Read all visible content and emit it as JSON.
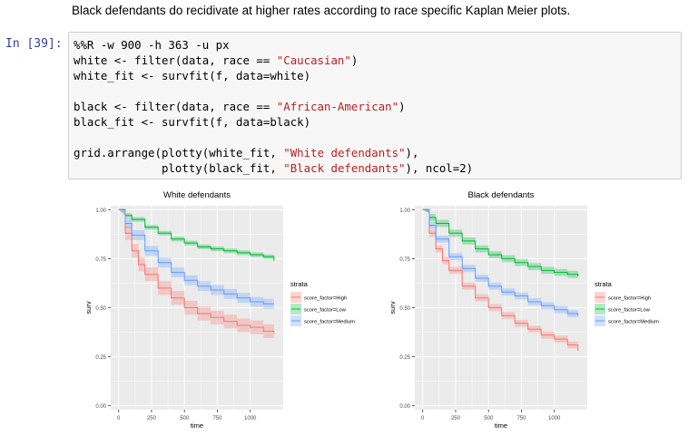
{
  "markdown": {
    "text": "Black defendants do recidivate at higher rates according to race specific Kaplan Meier plots."
  },
  "cell": {
    "prompt": "In [39]:",
    "code_lines": [
      [
        {
          "t": "%%R -w 900 -h 363 -u px",
          "c": ""
        }
      ],
      [
        {
          "t": "white <- filter(data, race == ",
          "c": ""
        },
        {
          "t": "\"Caucasian\"",
          "c": "str"
        },
        {
          "t": ")",
          "c": ""
        }
      ],
      [
        {
          "t": "white_fit <- survfit(f, data=white)",
          "c": ""
        }
      ],
      [
        {
          "t": "",
          "c": ""
        }
      ],
      [
        {
          "t": "black <- filter(data, race == ",
          "c": ""
        },
        {
          "t": "\"African-American\"",
          "c": "str"
        },
        {
          "t": ")",
          "c": ""
        }
      ],
      [
        {
          "t": "black_fit <- survfit(f, data=black)",
          "c": ""
        }
      ],
      [
        {
          "t": "",
          "c": ""
        }
      ],
      [
        {
          "t": "grid.arrange(plotty(white_fit, ",
          "c": ""
        },
        {
          "t": "\"White defendants\"",
          "c": "str"
        },
        {
          "t": "),",
          "c": ""
        }
      ],
      [
        {
          "t": "             plotty(black_fit, ",
          "c": ""
        },
        {
          "t": "\"Black defendants\"",
          "c": "str"
        },
        {
          "t": "), ncol=2)",
          "c": ""
        }
      ]
    ]
  },
  "colors": {
    "high": "#F8766D",
    "low": "#00BA38",
    "medium": "#619CFF",
    "panel_bg": "#EBEBEB",
    "grid": "#FFFFFF"
  },
  "chart_data": [
    {
      "type": "line",
      "title": "White defendants",
      "xlabel": "time",
      "ylabel": "surv",
      "xlim": [
        -60,
        1250
      ],
      "ylim": [
        -0.02,
        1.02
      ],
      "x_ticks": [
        0,
        250,
        500,
        750,
        1000
      ],
      "y_ticks": [
        0.0,
        0.25,
        0.5,
        0.75,
        1.0
      ],
      "y_tick_labels": [
        "0.00",
        "0.25",
        "0.50",
        "0.75",
        "1.00"
      ],
      "grid": true,
      "legend_title": "strata",
      "legend_position": "right",
      "series": [
        {
          "name": "score_factor=High",
          "color_key": "high",
          "x": [
            0,
            50,
            100,
            150,
            200,
            300,
            400,
            500,
            600,
            700,
            800,
            900,
            1000,
            1100,
            1180
          ],
          "y": [
            1.0,
            0.88,
            0.79,
            0.72,
            0.67,
            0.6,
            0.55,
            0.5,
            0.47,
            0.45,
            0.43,
            0.41,
            0.4,
            0.38,
            0.37
          ],
          "band": 0.035
        },
        {
          "name": "score_factor=Low",
          "color_key": "low",
          "x": [
            0,
            50,
            100,
            200,
            300,
            400,
            500,
            600,
            700,
            800,
            900,
            1000,
            1100,
            1180
          ],
          "y": [
            1.0,
            0.97,
            0.95,
            0.91,
            0.88,
            0.85,
            0.83,
            0.81,
            0.8,
            0.79,
            0.78,
            0.77,
            0.76,
            0.74
          ],
          "band": 0.012
        },
        {
          "name": "score_factor=Medium",
          "color_key": "medium",
          "x": [
            0,
            50,
            100,
            200,
            300,
            400,
            500,
            600,
            700,
            800,
            900,
            1000,
            1100,
            1180
          ],
          "y": [
            1.0,
            0.93,
            0.87,
            0.79,
            0.73,
            0.68,
            0.64,
            0.61,
            0.59,
            0.57,
            0.55,
            0.53,
            0.52,
            0.52
          ],
          "band": 0.025
        }
      ]
    },
    {
      "type": "line",
      "title": "Black defendants",
      "xlabel": "time",
      "ylabel": "surv",
      "xlim": [
        -60,
        1250
      ],
      "ylim": [
        -0.02,
        1.02
      ],
      "x_ticks": [
        0,
        250,
        500,
        750,
        1000
      ],
      "y_ticks": [
        0.0,
        0.25,
        0.5,
        0.75,
        1.0
      ],
      "y_tick_labels": [
        "0.00",
        "0.25",
        "0.50",
        "0.75",
        "1.00"
      ],
      "grid": true,
      "legend_title": "strata",
      "legend_position": "right",
      "series": [
        {
          "name": "score_factor=High",
          "color_key": "high",
          "x": [
            0,
            50,
            100,
            150,
            200,
            300,
            400,
            500,
            600,
            700,
            800,
            900,
            1000,
            1100,
            1180
          ],
          "y": [
            1.0,
            0.88,
            0.8,
            0.74,
            0.69,
            0.61,
            0.55,
            0.5,
            0.46,
            0.42,
            0.39,
            0.36,
            0.34,
            0.31,
            0.28
          ],
          "band": 0.018
        },
        {
          "name": "score_factor=Low",
          "color_key": "low",
          "x": [
            0,
            50,
            100,
            200,
            300,
            400,
            500,
            600,
            700,
            800,
            900,
            1000,
            1100,
            1180
          ],
          "y": [
            1.0,
            0.96,
            0.93,
            0.88,
            0.84,
            0.8,
            0.77,
            0.75,
            0.73,
            0.71,
            0.69,
            0.68,
            0.67,
            0.66
          ],
          "band": 0.018
        },
        {
          "name": "score_factor=Medium",
          "color_key": "medium",
          "x": [
            0,
            50,
            100,
            200,
            300,
            400,
            500,
            600,
            700,
            800,
            900,
            1000,
            1100,
            1180
          ],
          "y": [
            1.0,
            0.92,
            0.85,
            0.76,
            0.7,
            0.65,
            0.61,
            0.58,
            0.56,
            0.53,
            0.51,
            0.49,
            0.47,
            0.46
          ],
          "band": 0.018
        }
      ]
    }
  ]
}
